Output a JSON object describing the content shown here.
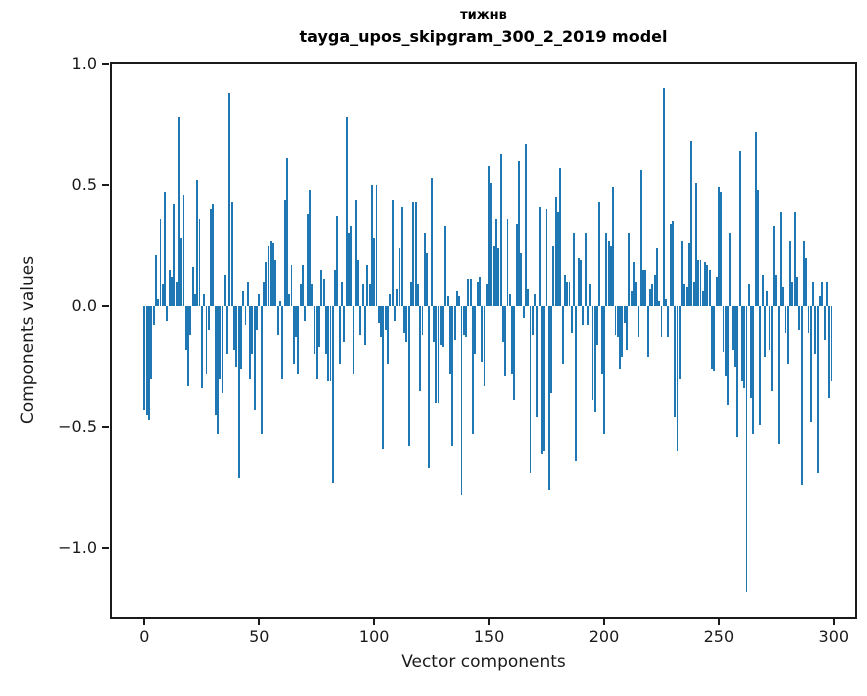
{
  "title": {
    "line1": "тижнв",
    "line2": "tayga_upos_skipgram_300_2_2019 model"
  },
  "axes": {
    "xlabel": "Vector components",
    "ylabel": "Components values",
    "x_ticks": [
      {
        "value": 0,
        "label": "0"
      },
      {
        "value": 50,
        "label": "50"
      },
      {
        "value": 100,
        "label": "100"
      },
      {
        "value": 150,
        "label": "150"
      },
      {
        "value": 200,
        "label": "200"
      },
      {
        "value": 250,
        "label": "250"
      },
      {
        "value": 300,
        "label": "300"
      }
    ],
    "y_ticks": [
      {
        "value": 1.0,
        "label": "1.0"
      },
      {
        "value": 0.5,
        "label": "0.5"
      },
      {
        "value": 0.0,
        "label": "0.0"
      },
      {
        "value": -0.5,
        "label": "−0.5"
      },
      {
        "value": -1.0,
        "label": "−1.0"
      }
    ]
  },
  "colors": {
    "bar": "#1f77b4",
    "axis": "#1a1a1a",
    "background": "#ffffff"
  },
  "chart_data": {
    "type": "bar",
    "title": "тижнв — tayga_upos_skipgram_300_2_2019 model",
    "xlabel": "Vector components",
    "ylabel": "Components values",
    "x_range": [
      0,
      299
    ],
    "ylim": [
      -1.29,
      1.0
    ],
    "xlim": [
      -14.5,
      310
    ],
    "grid": false,
    "legend": "none",
    "bar_color": "#1f77b4",
    "values": [
      -0.43,
      -0.45,
      -0.47,
      -0.3,
      -0.08,
      0.21,
      0.03,
      0.36,
      0.09,
      0.47,
      -0.06,
      0.15,
      0.12,
      0.42,
      0.1,
      0.78,
      0.28,
      0.46,
      -0.18,
      -0.33,
      -0.12,
      0.16,
      0.05,
      0.52,
      0.36,
      -0.34,
      0.05,
      -0.28,
      -0.1,
      0.4,
      0.42,
      -0.45,
      -0.53,
      -0.3,
      -0.36,
      0.13,
      -0.2,
      0.88,
      0.43,
      -0.18,
      -0.25,
      -0.71,
      -0.26,
      0.06,
      -0.08,
      0.1,
      -0.3,
      -0.2,
      -0.43,
      -0.1,
      0.05,
      -0.53,
      0.1,
      0.18,
      0.25,
      0.27,
      0.26,
      0.19,
      -0.12,
      0.02,
      -0.3,
      0.44,
      0.61,
      0.05,
      0.17,
      -0.24,
      -0.13,
      -0.28,
      0.09,
      0.17,
      -0.06,
      0.38,
      0.48,
      0.09,
      -0.2,
      -0.3,
      -0.17,
      0.15,
      0.11,
      -0.2,
      -0.31,
      -0.31,
      -0.73,
      0.15,
      0.37,
      -0.24,
      0.1,
      -0.15,
      0.78,
      0.3,
      0.33,
      -0.28,
      0.44,
      0.19,
      -0.12,
      0.09,
      -0.16,
      0.17,
      0.09,
      0.5,
      0.28,
      0.5,
      -0.07,
      -0.13,
      -0.59,
      -0.1,
      -0.24,
      0.05,
      0.44,
      -0.06,
      0.07,
      0.24,
      0.41,
      -0.11,
      -0.15,
      -0.58,
      0.1,
      0.43,
      0.43,
      0.09,
      -0.35,
      -0.12,
      0.3,
      0.22,
      -0.67,
      0.53,
      -0.15,
      -0.4,
      -0.4,
      -0.16,
      -0.17,
      0.33,
      0.04,
      -0.28,
      -0.58,
      -0.14,
      0.06,
      0.04,
      -0.78,
      -0.12,
      -0.13,
      0.11,
      0.11,
      -0.53,
      -0.2,
      0.1,
      0.12,
      -0.23,
      -0.33,
      0.09,
      0.58,
      0.51,
      0.25,
      0.36,
      0.24,
      0.63,
      -0.15,
      -0.29,
      0.36,
      0.05,
      -0.28,
      -0.39,
      0.34,
      0.6,
      0.22,
      -0.05,
      0.67,
      0.07,
      -0.69,
      -0.12,
      0.05,
      -0.46,
      0.41,
      -0.61,
      -0.6,
      0.4,
      -0.76,
      -0.36,
      0.25,
      0.45,
      0.39,
      0.57,
      -0.24,
      0.13,
      0.1,
      0.1,
      -0.11,
      0.3,
      -0.64,
      0.2,
      0.19,
      -0.08,
      0.3,
      -0.08,
      0.09,
      -0.39,
      -0.44,
      -0.16,
      0.43,
      -0.28,
      -0.53,
      0.3,
      0.27,
      0.25,
      0.49,
      -0.12,
      -0.13,
      -0.26,
      -0.21,
      -0.07,
      -0.18,
      0.3,
      0.06,
      0.18,
      0.1,
      -0.13,
      0.56,
      0.15,
      0.15,
      -0.21,
      0.07,
      0.09,
      0.13,
      0.24,
      0.02,
      -0.13,
      0.9,
      0.03,
      -0.13,
      0.34,
      0.35,
      -0.46,
      -0.6,
      -0.3,
      0.27,
      0.09,
      0.08,
      0.26,
      0.68,
      0.1,
      0.51,
      0.19,
      0.19,
      0.06,
      0.18,
      0.17,
      0.15,
      -0.26,
      -0.27,
      0.12,
      0.49,
      0.47,
      -0.19,
      -0.29,
      -0.41,
      0.3,
      -0.18,
      -0.25,
      -0.54,
      0.64,
      -0.31,
      -0.34,
      -1.18,
      0.09,
      -0.38,
      -0.53,
      0.72,
      0.48,
      -0.49,
      0.13,
      -0.21,
      0.06,
      -0.18,
      -0.35,
      0.33,
      0.13,
      -0.57,
      0.39,
      0.08,
      -0.11,
      -0.24,
      0.27,
      0.1,
      0.39,
      0.12,
      -0.1,
      -0.74,
      0.27,
      0.2,
      -0.11,
      -0.48,
      0.1,
      -0.2,
      -0.69,
      0.04,
      0.1,
      -0.14,
      0.1,
      -0.38,
      -0.31
    ]
  }
}
